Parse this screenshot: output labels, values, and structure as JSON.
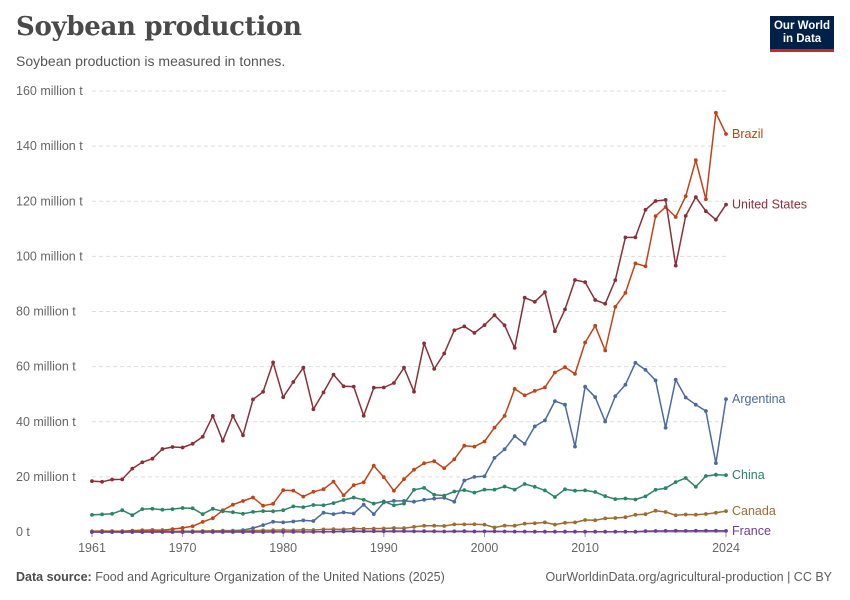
{
  "header": {
    "title": "Soybean production",
    "subtitle": "Soybean production is measured in tonnes.",
    "logo_line1": "Our World",
    "logo_line2": "in Data"
  },
  "footer": {
    "source_label": "Data source:",
    "source_text": "Food and Agriculture Organization of the United Nations (2025)",
    "credit": "OurWorldinData.org/agricultural-production | CC BY"
  },
  "chart_data": {
    "type": "line",
    "title": "Soybean production",
    "ylabel": "",
    "xlabel": "",
    "ylim": [
      0,
      160
    ],
    "xlim": [
      1961,
      2024
    ],
    "y_ticks": [
      {
        "value": 0,
        "label": "0 t"
      },
      {
        "value": 20,
        "label": "20 million t"
      },
      {
        "value": 40,
        "label": "40 million t"
      },
      {
        "value": 60,
        "label": "60 million t"
      },
      {
        "value": 80,
        "label": "80 million t"
      },
      {
        "value": 100,
        "label": "100 million t"
      },
      {
        "value": 120,
        "label": "120 million t"
      },
      {
        "value": 140,
        "label": "140 million t"
      },
      {
        "value": 160,
        "label": "160 million t"
      }
    ],
    "x_ticks": [
      {
        "value": 1961,
        "label": "1961"
      },
      {
        "value": 1970,
        "label": "1970"
      },
      {
        "value": 1980,
        "label": "1980"
      },
      {
        "value": 1990,
        "label": "1990"
      },
      {
        "value": 2000,
        "label": "2000"
      },
      {
        "value": 2010,
        "label": "2010"
      },
      {
        "value": 2024,
        "label": "2024"
      }
    ],
    "grid": true,
    "legend": "line-end labels",
    "x_start": 1961,
    "series": [
      {
        "name": "Brazil",
        "color": "#c0431a",
        "values": [
          0.27,
          0.35,
          0.32,
          0.3,
          0.52,
          0.6,
          0.72,
          0.65,
          1.06,
          1.5,
          2.08,
          3.67,
          5.01,
          7.88,
          9.89,
          11.23,
          12.51,
          9.54,
          10.24,
          15.16,
          15.01,
          12.84,
          14.58,
          15.54,
          18.28,
          13.33,
          16.98,
          18.02,
          24.05,
          19.9,
          14.94,
          19.21,
          22.59,
          24.93,
          25.68,
          23.16,
          26.39,
          31.3,
          30.99,
          32.82,
          37.88,
          42.11,
          51.92,
          49.55,
          51.18,
          52.46,
          57.86,
          59.83,
          57.35,
          68.76,
          74.82,
          65.85,
          81.72,
          86.76,
          97.46,
          96.39,
          114.6,
          117.9,
          114.3,
          121.8,
          134.9,
          120.7,
          152.1,
          144.4
        ]
      },
      {
        "name": "United States",
        "color": "#883039",
        "values": [
          18.47,
          18.21,
          19.04,
          19.08,
          23.01,
          25.27,
          26.58,
          30.13,
          30.84,
          30.67,
          32.0,
          34.58,
          42.12,
          33.1,
          42.14,
          35.1,
          48.1,
          50.86,
          61.53,
          48.92,
          54.43,
          59.61,
          44.52,
          50.64,
          57.11,
          52.87,
          52.74,
          42.15,
          52.35,
          52.42,
          54.07,
          59.61,
          50.92,
          68.44,
          59.17,
          64.78,
          73.18,
          74.6,
          72.22,
          75.06,
          78.67,
          75.01,
          66.78,
          85.01,
          83.51,
          87.0,
          72.86,
          80.75,
          91.42,
          90.66,
          84.19,
          82.79,
          91.39,
          106.9,
          106.9,
          116.9,
          120.1,
          120.5,
          96.67,
          114.7,
          121.5,
          116.4,
          113.3,
          118.8
        ]
      },
      {
        "name": "Argentina",
        "color": "#4c6a9c",
        "values": [
          0.0,
          0.0,
          0.0,
          0.0,
          0.0,
          0.0,
          0.02,
          0.02,
          0.03,
          0.03,
          0.06,
          0.08,
          0.27,
          0.5,
          0.49,
          0.7,
          1.4,
          2.5,
          3.7,
          3.5,
          3.8,
          4.2,
          4.0,
          7.0,
          6.5,
          7.1,
          6.7,
          9.9,
          6.5,
          10.7,
          11.3,
          11.3,
          11.0,
          11.7,
          12.1,
          12.4,
          11.0,
          18.7,
          20.0,
          20.2,
          26.9,
          30.0,
          34.8,
          32.0,
          38.3,
          40.5,
          47.5,
          46.2,
          31.0,
          52.7,
          48.9,
          40.1,
          49.3,
          53.4,
          61.4,
          58.8,
          55.0,
          37.8,
          55.3,
          48.8,
          46.2,
          43.9,
          25.0,
          48.2
        ]
      },
      {
        "name": "China",
        "color": "#2c8465",
        "values": [
          6.2,
          6.4,
          6.6,
          7.9,
          6.1,
          8.3,
          8.4,
          8.1,
          8.3,
          8.7,
          8.6,
          6.5,
          8.4,
          7.5,
          7.2,
          6.6,
          7.3,
          7.6,
          7.5,
          7.9,
          9.3,
          9.0,
          9.8,
          9.7,
          10.5,
          11.6,
          12.5,
          11.7,
          10.3,
          11.1,
          9.7,
          10.3,
          15.3,
          16.0,
          13.5,
          13.2,
          14.7,
          15.2,
          14.3,
          15.4,
          15.4,
          16.5,
          15.4,
          17.4,
          16.4,
          15.1,
          12.7,
          15.5,
          15.0,
          15.1,
          14.5,
          13.0,
          11.95,
          12.15,
          11.8,
          12.9,
          15.3,
          15.9,
          18.1,
          19.6,
          16.4,
          20.3,
          20.8,
          20.65
        ]
      },
      {
        "name": "Canada",
        "color": "#9a6d32",
        "values": [
          0.18,
          0.21,
          0.15,
          0.18,
          0.23,
          0.24,
          0.22,
          0.26,
          0.22,
          0.28,
          0.28,
          0.38,
          0.4,
          0.38,
          0.37,
          0.27,
          0.52,
          0.58,
          0.67,
          0.71,
          0.61,
          0.83,
          0.73,
          0.94,
          1.01,
          0.96,
          1.27,
          1.17,
          1.25,
          1.27,
          1.46,
          1.38,
          1.85,
          2.25,
          2.29,
          2.17,
          2.74,
          2.74,
          2.78,
          2.7,
          1.64,
          2.34,
          2.27,
          3.04,
          3.16,
          3.47,
          2.7,
          3.34,
          3.5,
          4.35,
          4.25,
          4.93,
          5.09,
          5.36,
          6.24,
          6.46,
          7.72,
          7.27,
          6.05,
          6.36,
          6.27,
          6.54,
          6.98,
          7.57
        ]
      },
      {
        "name": "France",
        "color": "#6d3e91",
        "values": [
          0.0,
          0.0,
          0.0,
          0.0,
          0.0,
          0.0,
          0.0,
          0.0,
          0.0,
          0.0,
          0.0,
          0.0,
          0.0,
          0.0,
          0.0,
          0.0,
          0.01,
          0.01,
          0.02,
          0.03,
          0.03,
          0.03,
          0.04,
          0.08,
          0.15,
          0.24,
          0.31,
          0.3,
          0.28,
          0.27,
          0.32,
          0.31,
          0.27,
          0.28,
          0.25,
          0.19,
          0.24,
          0.3,
          0.19,
          0.21,
          0.24,
          0.17,
          0.16,
          0.13,
          0.12,
          0.11,
          0.11,
          0.1,
          0.12,
          0.12,
          0.12,
          0.1,
          0.11,
          0.11,
          0.12,
          0.34,
          0.36,
          0.4,
          0.43,
          0.41,
          0.42,
          0.45,
          0.42,
          0.4
        ]
      }
    ]
  }
}
